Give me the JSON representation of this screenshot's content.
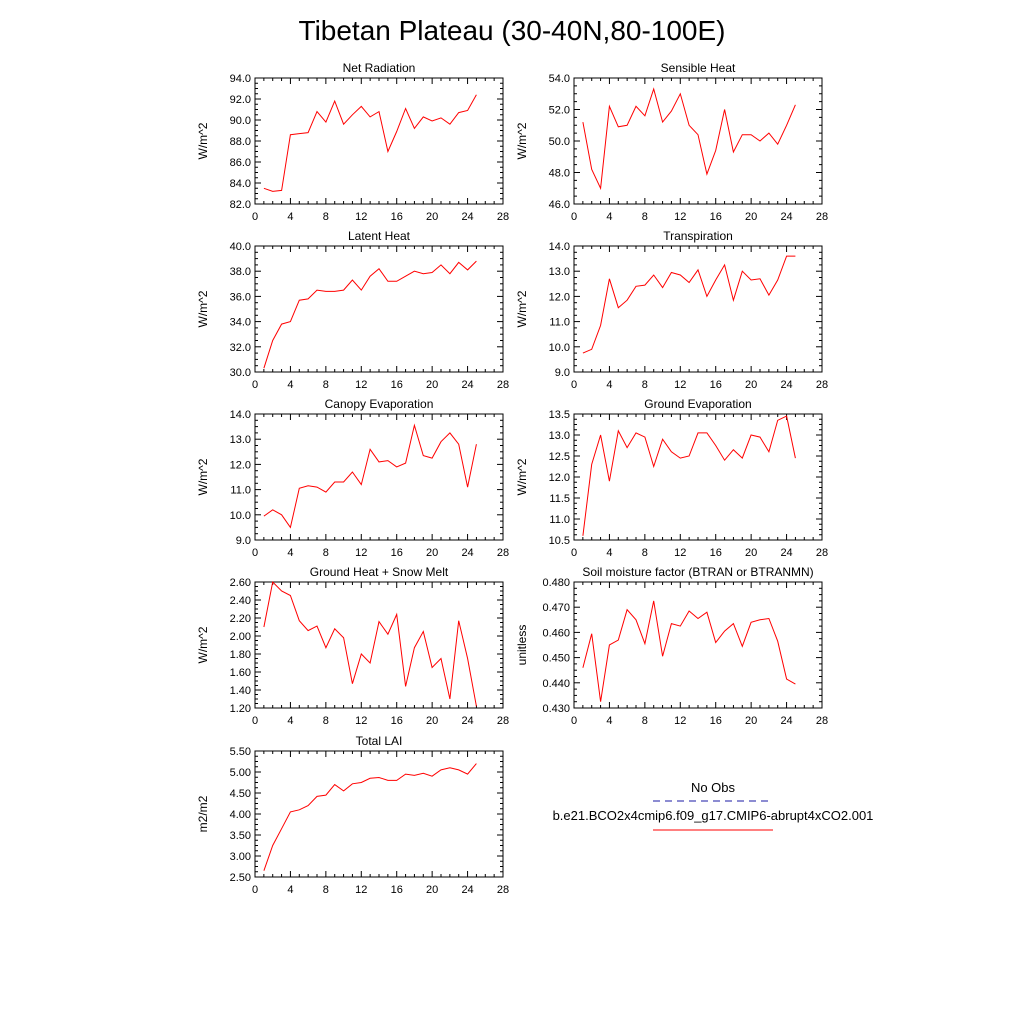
{
  "title": "Tibetan Plateau (30-40N,80-100E)",
  "legend": {
    "entries": [
      {
        "label": "No Obs",
        "color": "#1a1aa6",
        "style": "dashed"
      },
      {
        "label": "b.e21.BCO2x4cmip6.f09_g17.CMIP6-abrupt4xCO2.001",
        "color": "#ff0000",
        "style": "solid"
      }
    ]
  },
  "chart_data": [
    {
      "type": "line",
      "title": "Net Radiation",
      "ylabel": "W/m^2",
      "xlim": [
        0,
        28
      ],
      "xticks": [
        0,
        4,
        8,
        12,
        16,
        20,
        24,
        28
      ],
      "ylim": [
        82,
        94
      ],
      "yticks": [
        "82.0",
        "84.0",
        "86.0",
        "88.0",
        "90.0",
        "92.0",
        "94.0"
      ],
      "x": [
        1,
        2,
        3,
        4,
        5,
        6,
        7,
        8,
        9,
        10,
        11,
        12,
        13,
        14,
        15,
        16,
        17,
        18,
        19,
        20,
        21,
        22,
        23,
        24,
        25
      ],
      "series": [
        {
          "color": "#ff0000",
          "values": [
            83.5,
            83.2,
            83.3,
            88.6,
            88.7,
            88.8,
            90.8,
            89.8,
            91.8,
            89.6,
            90.5,
            91.3,
            90.3,
            90.8,
            87.0,
            88.9,
            91.1,
            89.2,
            90.3,
            89.9,
            90.2,
            89.6,
            90.7,
            90.9,
            92.4
          ]
        }
      ]
    },
    {
      "type": "line",
      "title": "Sensible Heat",
      "ylabel": "W/m^2",
      "xlim": [
        0,
        28
      ],
      "xticks": [
        0,
        4,
        8,
        12,
        16,
        20,
        24,
        28
      ],
      "ylim": [
        46,
        54
      ],
      "yticks": [
        "46.0",
        "48.0",
        "50.0",
        "52.0",
        "54.0"
      ],
      "x": [
        1,
        2,
        3,
        4,
        5,
        6,
        7,
        8,
        9,
        10,
        11,
        12,
        13,
        14,
        15,
        16,
        17,
        18,
        19,
        20,
        21,
        22,
        23,
        24,
        25
      ],
      "series": [
        {
          "color": "#ff0000",
          "values": [
            51.2,
            48.2,
            47.0,
            52.2,
            50.9,
            51.0,
            52.2,
            51.6,
            53.3,
            51.2,
            51.9,
            53.0,
            51.0,
            50.4,
            47.9,
            49.4,
            52.0,
            49.3,
            50.4,
            50.4,
            50.0,
            50.5,
            49.8,
            51.0,
            52.3
          ]
        }
      ]
    },
    {
      "type": "line",
      "title": "Latent Heat",
      "ylabel": "W/m^2",
      "xlim": [
        0,
        28
      ],
      "xticks": [
        0,
        4,
        8,
        12,
        16,
        20,
        24,
        28
      ],
      "ylim": [
        30,
        40
      ],
      "yticks": [
        "30.0",
        "32.0",
        "34.0",
        "36.0",
        "38.0",
        "40.0"
      ],
      "x": [
        1,
        2,
        3,
        4,
        5,
        6,
        7,
        8,
        9,
        10,
        11,
        12,
        13,
        14,
        15,
        16,
        17,
        18,
        19,
        20,
        21,
        22,
        23,
        24,
        25
      ],
      "series": [
        {
          "color": "#ff0000",
          "values": [
            30.3,
            32.5,
            33.8,
            34.0,
            35.7,
            35.8,
            36.5,
            36.4,
            36.4,
            36.5,
            37.3,
            36.5,
            37.6,
            38.2,
            37.2,
            37.2,
            37.6,
            38.0,
            37.8,
            37.9,
            38.5,
            37.8,
            38.7,
            38.1,
            38.8
          ]
        }
      ]
    },
    {
      "type": "line",
      "title": "Transpiration",
      "ylabel": "W/m^2",
      "xlim": [
        0,
        28
      ],
      "xticks": [
        0,
        4,
        8,
        12,
        16,
        20,
        24,
        28
      ],
      "ylim": [
        9,
        14
      ],
      "yticks": [
        "9.0",
        "10.0",
        "11.0",
        "12.0",
        "13.0",
        "14.0"
      ],
      "x": [
        1,
        2,
        3,
        4,
        5,
        6,
        7,
        8,
        9,
        10,
        11,
        12,
        13,
        14,
        15,
        16,
        17,
        18,
        19,
        20,
        21,
        22,
        23,
        24,
        25
      ],
      "series": [
        {
          "color": "#ff0000",
          "values": [
            9.75,
            9.9,
            10.85,
            12.7,
            11.55,
            11.85,
            12.4,
            12.45,
            12.85,
            12.35,
            12.95,
            12.85,
            12.55,
            13.05,
            12.0,
            12.65,
            13.25,
            11.85,
            13.0,
            12.65,
            12.7,
            12.05,
            12.65,
            13.6,
            13.6
          ]
        }
      ]
    },
    {
      "type": "line",
      "title": "Canopy Evaporation",
      "ylabel": "W/m^2",
      "xlim": [
        0,
        28
      ],
      "xticks": [
        0,
        4,
        8,
        12,
        16,
        20,
        24,
        28
      ],
      "ylim": [
        9,
        14
      ],
      "yticks": [
        "9.0",
        "10.0",
        "11.0",
        "12.0",
        "13.0",
        "14.0"
      ],
      "x": [
        1,
        2,
        3,
        4,
        5,
        6,
        7,
        8,
        9,
        10,
        11,
        12,
        13,
        14,
        15,
        16,
        17,
        18,
        19,
        20,
        21,
        22,
        23,
        24,
        25
      ],
      "series": [
        {
          "color": "#ff0000",
          "values": [
            9.95,
            10.2,
            10.0,
            9.5,
            11.05,
            11.15,
            11.1,
            10.9,
            11.3,
            11.3,
            11.7,
            11.2,
            12.6,
            12.1,
            12.15,
            11.9,
            12.05,
            13.55,
            12.35,
            12.25,
            12.9,
            13.25,
            12.8,
            11.1,
            12.8
          ]
        }
      ]
    },
    {
      "type": "line",
      "title": "Ground Evaporation",
      "ylabel": "W/m^2",
      "xlim": [
        0,
        28
      ],
      "xticks": [
        0,
        4,
        8,
        12,
        16,
        20,
        24,
        28
      ],
      "ylim": [
        10.5,
        13.5
      ],
      "yticks": [
        "10.5",
        "11.0",
        "11.5",
        "12.0",
        "12.5",
        "13.0",
        "13.5"
      ],
      "x": [
        1,
        2,
        3,
        4,
        5,
        6,
        7,
        8,
        9,
        10,
        11,
        12,
        13,
        14,
        15,
        16,
        17,
        18,
        19,
        20,
        21,
        22,
        23,
        24,
        25
      ],
      "series": [
        {
          "color": "#ff0000",
          "values": [
            10.6,
            12.3,
            13.0,
            11.9,
            13.1,
            12.7,
            13.05,
            12.95,
            12.25,
            12.9,
            12.6,
            12.45,
            12.5,
            13.05,
            13.05,
            12.75,
            12.4,
            12.65,
            12.45,
            13.0,
            12.95,
            12.6,
            13.35,
            13.45,
            12.45
          ]
        }
      ]
    },
    {
      "type": "line",
      "title": "Ground Heat + Snow Melt",
      "ylabel": "W/m^2",
      "xlim": [
        0,
        28
      ],
      "xticks": [
        0,
        4,
        8,
        12,
        16,
        20,
        24,
        28
      ],
      "ylim": [
        1.2,
        2.6
      ],
      "yticks": [
        "1.20",
        "1.40",
        "1.60",
        "1.80",
        "2.00",
        "2.20",
        "2.40",
        "2.60"
      ],
      "x": [
        1,
        2,
        3,
        4,
        5,
        6,
        7,
        8,
        9,
        10,
        11,
        12,
        13,
        14,
        15,
        16,
        17,
        18,
        19,
        20,
        21,
        22,
        23,
        24,
        25
      ],
      "series": [
        {
          "color": "#ff0000",
          "values": [
            2.1,
            2.6,
            2.5,
            2.45,
            2.17,
            2.06,
            2.11,
            1.87,
            2.08,
            1.98,
            1.47,
            1.8,
            1.7,
            2.16,
            2.02,
            2.24,
            1.44,
            1.87,
            2.05,
            1.65,
            1.75,
            1.3,
            2.17,
            1.75,
            1.22
          ]
        }
      ]
    },
    {
      "type": "line",
      "title": "Soil moisture factor (BTRAN or BTRANMN)",
      "ylabel": "unitless",
      "xlim": [
        0,
        28
      ],
      "xticks": [
        0,
        4,
        8,
        12,
        16,
        20,
        24,
        28
      ],
      "ylim": [
        0.43,
        0.48
      ],
      "yticks": [
        "0.430",
        "0.440",
        "0.450",
        "0.460",
        "0.470",
        "0.480"
      ],
      "x": [
        1,
        2,
        3,
        4,
        5,
        6,
        7,
        8,
        9,
        10,
        11,
        12,
        13,
        14,
        15,
        16,
        17,
        18,
        19,
        20,
        21,
        22,
        23,
        24,
        25
      ],
      "series": [
        {
          "color": "#ff0000",
          "values": [
            0.446,
            0.4595,
            0.4325,
            0.455,
            0.457,
            0.469,
            0.465,
            0.4555,
            0.4725,
            0.4505,
            0.4635,
            0.4625,
            0.4685,
            0.4655,
            0.468,
            0.456,
            0.4605,
            0.4635,
            0.4545,
            0.464,
            0.465,
            0.4655,
            0.4565,
            0.4415,
            0.4395
          ]
        }
      ]
    },
    {
      "type": "line",
      "title": "Total LAI",
      "ylabel": "m2/m2",
      "xlim": [
        0,
        28
      ],
      "xticks": [
        0,
        4,
        8,
        12,
        16,
        20,
        24,
        28
      ],
      "ylim": [
        2.5,
        5.5
      ],
      "yticks": [
        "2.50",
        "3.00",
        "3.50",
        "4.00",
        "4.50",
        "5.00",
        "5.50"
      ],
      "x": [
        1,
        2,
        3,
        4,
        5,
        6,
        7,
        8,
        9,
        10,
        11,
        12,
        13,
        14,
        15,
        16,
        17,
        18,
        19,
        20,
        21,
        22,
        23,
        24,
        25
      ],
      "series": [
        {
          "color": "#ff0000",
          "values": [
            2.65,
            3.25,
            3.65,
            4.05,
            4.1,
            4.2,
            4.42,
            4.45,
            4.7,
            4.55,
            4.72,
            4.75,
            4.85,
            4.87,
            4.8,
            4.8,
            4.95,
            4.92,
            4.97,
            4.9,
            5.05,
            5.1,
            5.05,
            4.95,
            5.2
          ]
        }
      ]
    }
  ]
}
